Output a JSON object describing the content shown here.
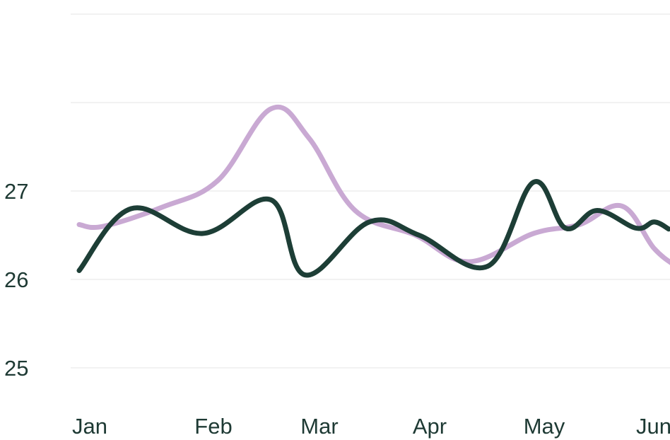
{
  "chart_data": {
    "type": "line",
    "title": "",
    "xlabel": "",
    "ylabel": "",
    "x_ticks": [
      "Jan",
      "Feb",
      "Mar",
      "Apr",
      "May",
      "Jun"
    ],
    "y_ticks": [
      "25",
      "26",
      "27"
    ],
    "ylim": [
      24.0,
      27.95
    ],
    "grid": "horizontal",
    "legend": "none",
    "series": [
      {
        "color": "#c9a9d3",
        "points": [
          {
            "x": "Jan 1",
            "y": 26.62
          },
          {
            "x": "Jan 7",
            "y": 26.6
          },
          {
            "x": "Jan 22",
            "y": 26.82
          },
          {
            "x": "Feb 5",
            "y": 27.12
          },
          {
            "x": "Feb 19",
            "y": 27.93
          },
          {
            "x": "Mar 1",
            "y": 27.6
          },
          {
            "x": "Mar 14",
            "y": 26.78
          },
          {
            "x": "Mar 31",
            "y": 26.5
          },
          {
            "x": "Apr 14",
            "y": 26.2
          },
          {
            "x": "May 1",
            "y": 26.52
          },
          {
            "x": "May 14",
            "y": 26.62
          },
          {
            "x": "May 26",
            "y": 26.83
          },
          {
            "x": "Jun 4",
            "y": 26.35
          },
          {
            "x": "Jun 10",
            "y": 26.15
          }
        ]
      },
      {
        "color": "#1d3e36",
        "points": [
          {
            "x": "Jan 1",
            "y": 26.1
          },
          {
            "x": "Jan 14",
            "y": 26.8
          },
          {
            "x": "Feb 1",
            "y": 26.52
          },
          {
            "x": "Feb 19",
            "y": 26.9
          },
          {
            "x": "Feb 28",
            "y": 26.05
          },
          {
            "x": "Mar 18",
            "y": 26.65
          },
          {
            "x": "Apr 1",
            "y": 26.5
          },
          {
            "x": "Apr 19",
            "y": 26.15
          },
          {
            "x": "May 1",
            "y": 27.1
          },
          {
            "x": "May 10",
            "y": 26.58
          },
          {
            "x": "May 19",
            "y": 26.78
          },
          {
            "x": "May 30",
            "y": 26.58
          },
          {
            "x": "Jun 4",
            "y": 26.65
          },
          {
            "x": "Jun 8",
            "y": 26.57
          }
        ]
      }
    ]
  }
}
